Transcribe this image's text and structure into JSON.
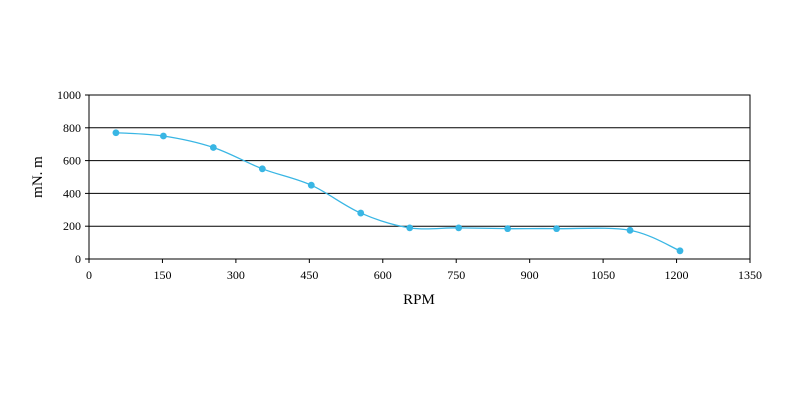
{
  "chart_data": {
    "type": "line",
    "title": "",
    "xlabel": "RPM",
    "ylabel": "mN. m",
    "xlim": [
      0,
      1350
    ],
    "ylim": [
      0,
      1000
    ],
    "xticks": [
      0,
      150,
      300,
      450,
      600,
      750,
      900,
      1050,
      1200,
      1350
    ],
    "yticks": [
      0,
      200,
      400,
      600,
      800,
      1000
    ],
    "grid": "horizontal",
    "legend": "none",
    "series": [
      {
        "color": "#39b6e4",
        "points": [
          {
            "x": 55,
            "y": 770
          },
          {
            "x": 152,
            "y": 750
          },
          {
            "x": 254,
            "y": 680
          },
          {
            "x": 354,
            "y": 550
          },
          {
            "x": 454,
            "y": 450
          },
          {
            "x": 555,
            "y": 280
          },
          {
            "x": 655,
            "y": 190
          },
          {
            "x": 755,
            "y": 190
          },
          {
            "x": 855,
            "y": 185
          },
          {
            "x": 955,
            "y": 185
          },
          {
            "x": 1105,
            "y": 175
          },
          {
            "x": 1207,
            "y": 50
          }
        ]
      }
    ]
  }
}
